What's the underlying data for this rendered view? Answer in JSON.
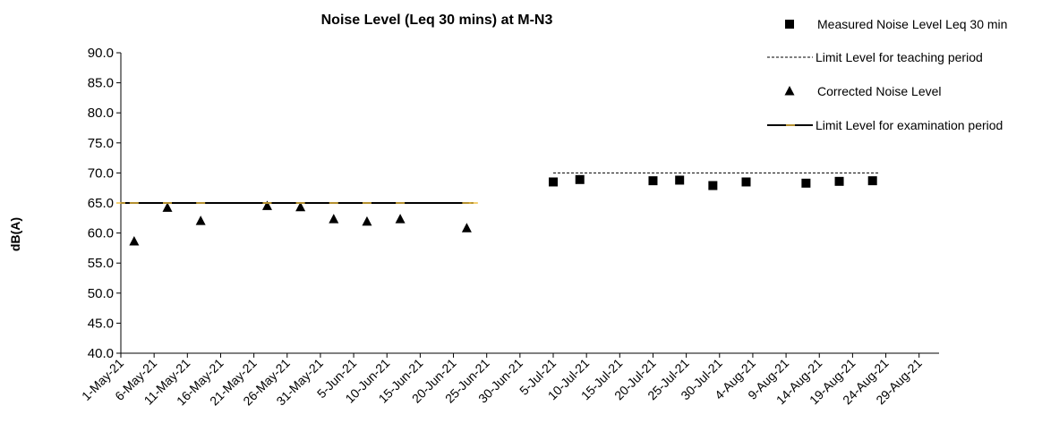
{
  "chart_data": {
    "type": "scatter",
    "title": "Noise Level (Leq 30 mins) at M-N3",
    "ylabel": "dB(A)",
    "xlabel": "",
    "ylim": [
      40.0,
      90.0
    ],
    "yticks": [
      "40.0",
      "45.0",
      "50.0",
      "55.0",
      "60.0",
      "65.0",
      "70.0",
      "75.0",
      "80.0",
      "85.0",
      "90.0"
    ],
    "xticks": [
      "1-May-21",
      "6-May-21",
      "11-May-21",
      "16-May-21",
      "21-May-21",
      "26-May-21",
      "31-May-21",
      "5-Jun-21",
      "10-Jun-21",
      "15-Jun-21",
      "20-Jun-21",
      "25-Jun-21",
      "30-Jun-21",
      "5-Jul-21",
      "10-Jul-21",
      "15-Jul-21",
      "20-Jul-21",
      "25-Jul-21",
      "30-Jul-21",
      "4-Aug-21",
      "9-Aug-21",
      "14-Aug-21",
      "19-Aug-21",
      "24-Aug-21",
      "29-Aug-21"
    ],
    "legend_position": "top-right",
    "grid": false,
    "series": [
      {
        "name": "Measured Noise Level Leq 30 min",
        "marker": "square",
        "color": "#000000",
        "points": [
          {
            "x": "5-Jul-21",
            "y": 68.5
          },
          {
            "x": "9-Jul-21",
            "y": 68.9
          },
          {
            "x": "20-Jul-21",
            "y": 68.7
          },
          {
            "x": "24-Jul-21",
            "y": 68.8
          },
          {
            "x": "29-Jul-21",
            "y": 67.9
          },
          {
            "x": "3-Aug-21",
            "y": 68.5
          },
          {
            "x": "12-Aug-21",
            "y": 68.3
          },
          {
            "x": "17-Aug-21",
            "y": 68.6
          },
          {
            "x": "22-Aug-21",
            "y": 68.7
          }
        ]
      },
      {
        "name": "Limit Level for teaching period",
        "line": "dashed",
        "color": "#000000",
        "points": [
          {
            "x": "5-Jul-21",
            "y": 70.0
          },
          {
            "x": "23-Aug-21",
            "y": 70.0
          }
        ]
      },
      {
        "name": "Corrected Noise Level",
        "marker": "triangle",
        "color": "#000000",
        "points": [
          {
            "x": "3-May-21",
            "y": 58.6
          },
          {
            "x": "8-May-21",
            "y": 64.2
          },
          {
            "x": "13-May-21",
            "y": 62.0
          },
          {
            "x": "23-May-21",
            "y": 64.5
          },
          {
            "x": "28-May-21",
            "y": 64.3
          },
          {
            "x": "2-Jun-21",
            "y": 62.3
          },
          {
            "x": "7-Jun-21",
            "y": 61.9
          },
          {
            "x": "12-Jun-21",
            "y": 62.3
          },
          {
            "x": "22-Jun-21",
            "y": 60.8
          }
        ]
      },
      {
        "name": "Limit Level for examination period",
        "line": "solid",
        "color": "#000000",
        "marker_color": "#f0c040",
        "points": [
          {
            "x": "1-May-21",
            "y": 65.0
          },
          {
            "x": "3-May-21",
            "y": 65.0
          },
          {
            "x": "8-May-21",
            "y": 65.0
          },
          {
            "x": "13-May-21",
            "y": 65.0
          },
          {
            "x": "23-May-21",
            "y": 65.0
          },
          {
            "x": "28-May-21",
            "y": 65.0
          },
          {
            "x": "2-Jun-21",
            "y": 65.0
          },
          {
            "x": "7-Jun-21",
            "y": 65.0
          },
          {
            "x": "12-Jun-21",
            "y": 65.0
          },
          {
            "x": "22-Jun-21",
            "y": 65.0
          },
          {
            "x": "23-Jun-21",
            "y": 65.0
          }
        ]
      }
    ]
  }
}
